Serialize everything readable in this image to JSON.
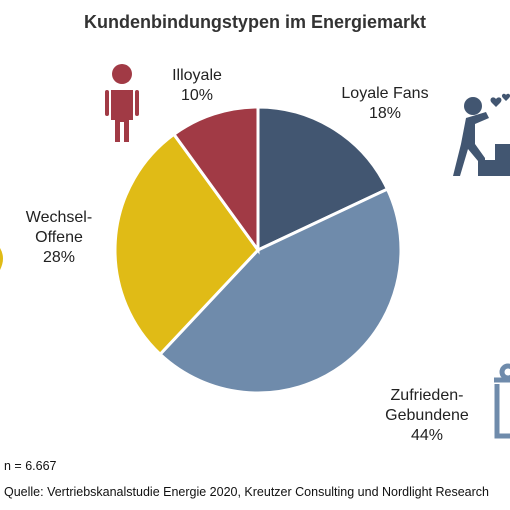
{
  "chart_data": {
    "type": "pie",
    "title": "Kundenbindungstypen im Energiemarkt",
    "start_angle_deg": 0,
    "direction": "clockwise",
    "slices": [
      {
        "name_lines": [
          "Loyale Fans"
        ],
        "value_label": "18%",
        "value": 18,
        "color": "#425671"
      },
      {
        "name_lines": [
          "Zufrieden-",
          "Gebundene"
        ],
        "value_label": "44%",
        "value": 44,
        "color": "#6f8bab"
      },
      {
        "name_lines": [
          "Wechsel-",
          "Offene"
        ],
        "value_label": "28%",
        "value": 28,
        "color": "#e0bb16"
      },
      {
        "name_lines": [
          "Illoyale"
        ],
        "value_label": "10%",
        "value": 10,
        "color": "#a13a45"
      }
    ]
  },
  "footer": {
    "sample_size": "n = 6.667",
    "source": "Quelle: Vertriebskanalstudie Energie 2020, Kreutzer Consulting und Nordlight Research"
  },
  "icons": {
    "illoyal": {
      "name": "disappointed-person-icon",
      "color": "#a13a45"
    },
    "fans": {
      "name": "person-with-hearts-icon",
      "color": "#425671"
    },
    "wechsel": {
      "name": "person-icon",
      "color": "#e0bb16"
    },
    "gebunden": {
      "name": "gift-box-icon",
      "color": "#6f8bab"
    }
  }
}
